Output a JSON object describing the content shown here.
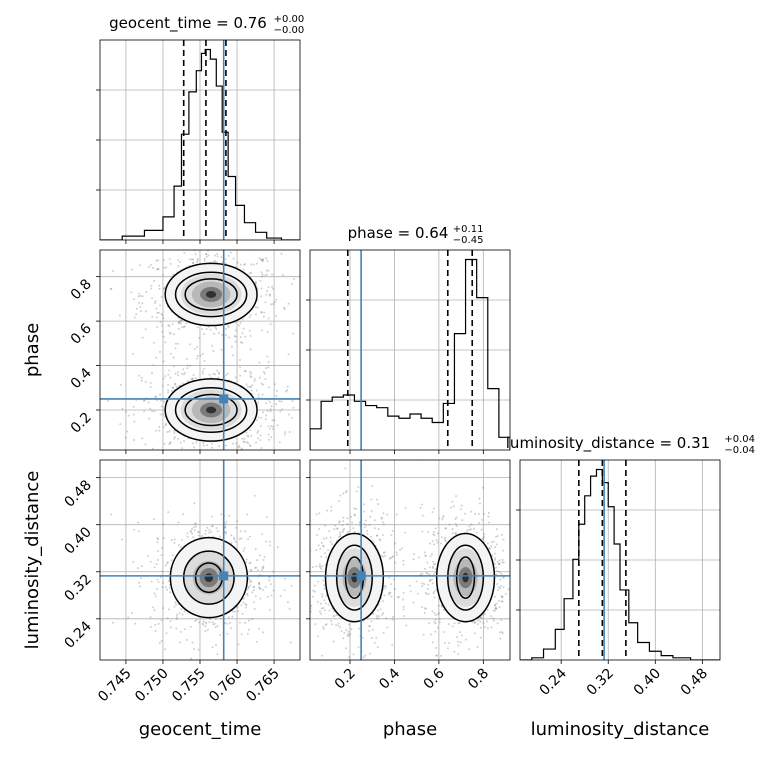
{
  "chart_data": {
    "type": "corner",
    "parameters": [
      "geocent_time",
      "phase",
      "luminosity_distance"
    ],
    "titles": [
      {
        "text": "geocent_time = 0.76",
        "plus": "+0.00",
        "minus": "−0.00"
      },
      {
        "text": "phase = 0.64",
        "plus": "+0.11",
        "minus": "−0.45"
      },
      {
        "text": "luminosity_distance = 0.31",
        "plus": "+0.04",
        "minus": "−0.04"
      }
    ],
    "ranges": [
      [
        0.7415,
        0.7685
      ],
      [
        0.02,
        0.92
      ],
      [
        0.17,
        0.51
      ]
    ],
    "ticks": [
      {
        "values": [
          0.745,
          0.75,
          0.755,
          0.76,
          0.765
        ],
        "labels": [
          "0.745",
          "0.750",
          "0.755",
          "0.760",
          "0.765"
        ]
      },
      {
        "values": [
          0.2,
          0.4,
          0.6,
          0.8
        ],
        "labels": [
          "0.2",
          "0.4",
          "0.6",
          "0.8"
        ]
      },
      {
        "values": [
          0.24,
          0.32,
          0.4,
          0.48
        ],
        "labels": [
          "0.24",
          "0.32",
          "0.40",
          "0.48"
        ]
      }
    ],
    "truth": [
      0.7582,
      0.25,
      0.313
    ],
    "truth_color": "#4682b4",
    "quantiles": [
      {
        "lo": 0.7528,
        "med": 0.7558,
        "hi": 0.7585
      },
      {
        "lo": 0.19,
        "med": 0.64,
        "hi": 0.75
      },
      {
        "lo": 0.27,
        "med": 0.31,
        "hi": 0.35
      }
    ],
    "histograms": [
      {
        "bins": [
          0.7415,
          0.7445,
          0.7475,
          0.75,
          0.7515,
          0.7525,
          0.7535,
          0.7545,
          0.7552,
          0.7557,
          0.7564,
          0.7572,
          0.758,
          0.7588,
          0.7598,
          0.761,
          0.7625,
          0.764,
          0.766,
          0.7685
        ],
        "counts": [
          0,
          2,
          5,
          12,
          28,
          55,
          77,
          88,
          97,
          99,
          94,
          80,
          56,
          33,
          18,
          9,
          4,
          1,
          0
        ]
      },
      {
        "bins": [
          0.02,
          0.07,
          0.12,
          0.17,
          0.22,
          0.27,
          0.32,
          0.37,
          0.42,
          0.47,
          0.52,
          0.57,
          0.62,
          0.67,
          0.72,
          0.77,
          0.82,
          0.87,
          0.92
        ],
        "counts": [
          10,
          23,
          25,
          26,
          23,
          21,
          20,
          16,
          15,
          17,
          15,
          13,
          22,
          55,
          90,
          72,
          29,
          6
        ]
      },
      {
        "bins": [
          0.17,
          0.19,
          0.21,
          0.23,
          0.245,
          0.26,
          0.27,
          0.28,
          0.29,
          0.3,
          0.31,
          0.32,
          0.33,
          0.34,
          0.355,
          0.37,
          0.39,
          0.41,
          0.43,
          0.46,
          0.49,
          0.51
        ],
        "counts": [
          0,
          1,
          5,
          14,
          28,
          46,
          62,
          75,
          84,
          87,
          81,
          70,
          53,
          32,
          17,
          8,
          4,
          2,
          1,
          0,
          0
        ]
      }
    ],
    "contours": [
      {
        "x": 0,
        "y": 1,
        "centers": [
          [
            0.7565,
            0.72
          ],
          [
            0.7565,
            0.2
          ]
        ],
        "levels": [
          [
            0.0035,
            0.07
          ],
          [
            0.0048,
            0.1
          ],
          [
            0.0062,
            0.14
          ]
        ]
      },
      {
        "x": 0,
        "y": 2,
        "centers": [
          [
            0.7562,
            0.31
          ]
        ],
        "levels": [
          [
            0.0018,
            0.025
          ],
          [
            0.0034,
            0.045
          ],
          [
            0.0052,
            0.068
          ]
        ]
      },
      {
        "x": 1,
        "y": 2,
        "centers": [
          [
            0.72,
            0.31
          ],
          [
            0.22,
            0.31
          ]
        ],
        "levels": [
          [
            0.04,
            0.035
          ],
          [
            0.08,
            0.055
          ],
          [
            0.13,
            0.075
          ]
        ]
      }
    ],
    "grid": true
  }
}
